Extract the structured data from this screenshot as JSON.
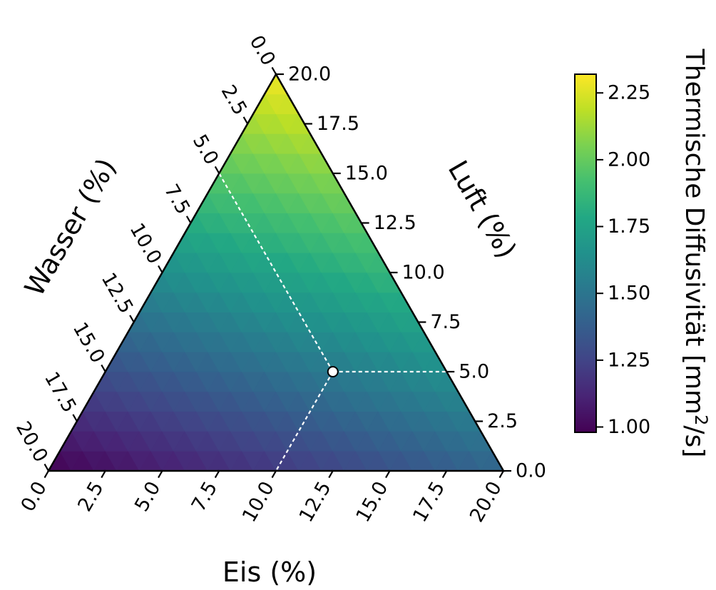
{
  "chart_data": {
    "type": "ternary-heatmap",
    "axes": {
      "bottom": {
        "label": "Eis (%)",
        "ticks": [
          "0.0",
          "2.5",
          "5.0",
          "7.5",
          "10.0",
          "12.5",
          "15.0",
          "17.5",
          "20.0"
        ],
        "range": [
          0,
          20
        ]
      },
      "left": {
        "label": "Wasser (%)",
        "ticks": [
          "0.0",
          "2.5",
          "5.0",
          "7.5",
          "10.0",
          "12.5",
          "15.0",
          "17.5",
          "20.0"
        ],
        "range": [
          0,
          20
        ]
      },
      "right": {
        "label": "Luft (%)",
        "ticks": [
          "0.0",
          "2.5",
          "5.0",
          "7.5",
          "10.0",
          "12.5",
          "15.0",
          "17.5",
          "20.0"
        ],
        "range": [
          0,
          20
        ]
      }
    },
    "total": 20,
    "field": {
      "description_formula": "diffusivity varies with composition; low at high Wasser, high at high Luft",
      "corner_values": {
        "luft_20": 2.3,
        "eis_20": 1.42,
        "wasser_20": 0.98
      }
    },
    "marker": {
      "eis": 10,
      "wasser": 5,
      "luft": 5
    },
    "colorbar": {
      "label": "Thermische Diffusivität [mm²/s]",
      "label_parts": {
        "main": "Thermische Diffusivität [mm",
        "sup": "2",
        "tail": "/s]"
      },
      "ticks": [
        "1.00",
        "1.25",
        "1.50",
        "1.75",
        "2.00",
        "2.25"
      ],
      "range": [
        0.98,
        2.32
      ],
      "colormap": "viridis"
    }
  }
}
